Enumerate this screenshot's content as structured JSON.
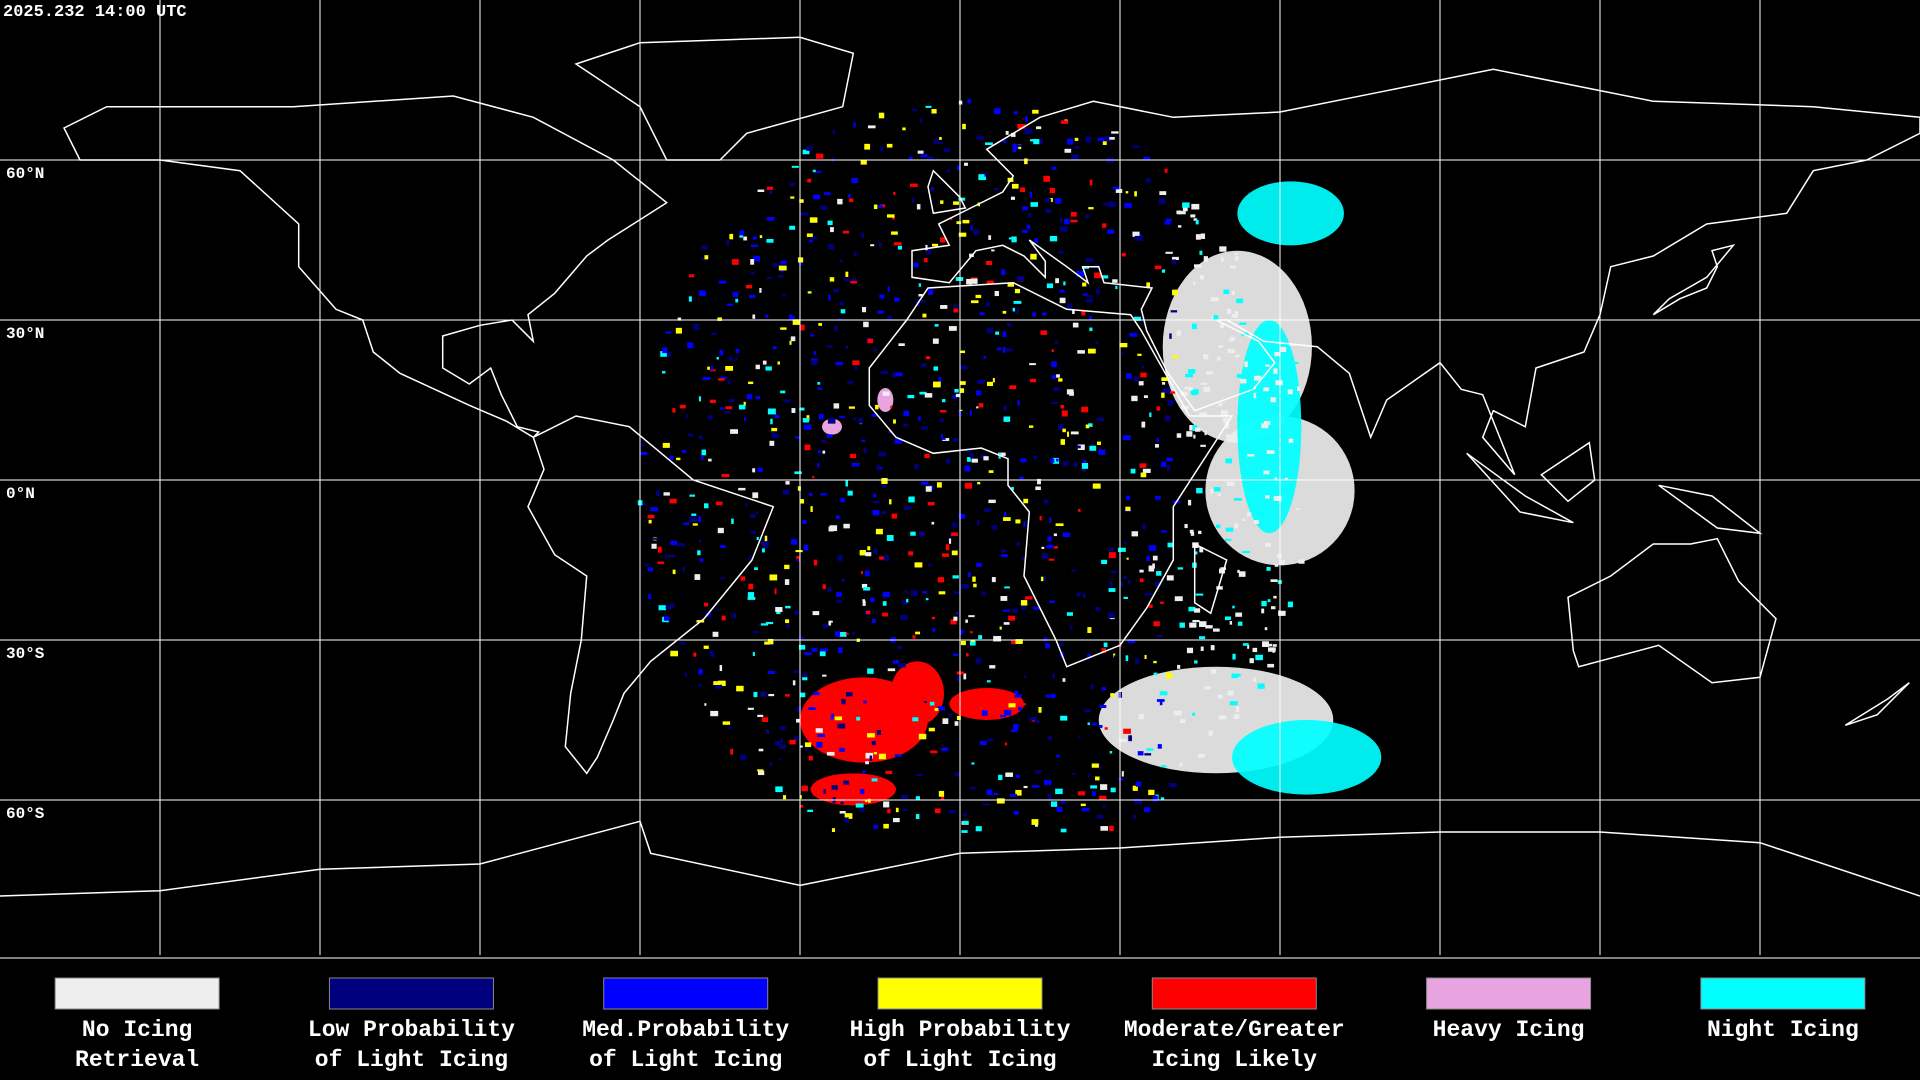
{
  "header": {
    "timestamp": "2025.232 14:00 UTC"
  },
  "lat_labels": [
    "60°N",
    "30°N",
    "0°N",
    "30°S",
    "60°S"
  ],
  "legend": [
    {
      "lines": [
        "No Icing",
        "Retrieval"
      ],
      "color": "#eeeeee"
    },
    {
      "lines": [
        "Low Probability",
        "of Light Icing"
      ],
      "color": "#00007f"
    },
    {
      "lines": [
        "Med.Probability",
        "of Light Icing"
      ],
      "color": "#0000ff"
    },
    {
      "lines": [
        "High Probability",
        "of Light Icing"
      ],
      "color": "#ffff00"
    },
    {
      "lines": [
        "Moderate/Greater",
        "Icing Likely"
      ],
      "color": "#ff0000"
    },
    {
      "lines": [
        "Heavy Icing"
      ],
      "color": "#e8a4e0"
    },
    {
      "lines": [
        "Night Icing"
      ],
      "color": "#00ffff"
    }
  ]
}
